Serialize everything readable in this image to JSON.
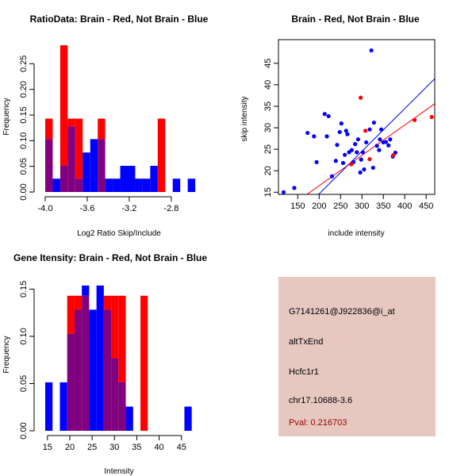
{
  "colors": {
    "brain": "#ff0000",
    "not_brain": "#0000ff",
    "overlap": "#800080",
    "panel_bg": "#e6c8c0",
    "pval_text": "#9a0000"
  },
  "chart_data": [
    {
      "id": "ratio",
      "type": "histogram",
      "title": "RatioData: Brain - Red, Not Brain - Blue",
      "xlabel": "Log2 Ratio Skip/Include",
      "ylabel": "Frequency",
      "xlim": [
        -4.0,
        -2.55
      ],
      "ylim": [
        0,
        0.3
      ],
      "x_ticks": [
        -4.0,
        -3.6,
        -3.2,
        -2.8
      ],
      "x_tick_labels": [
        "-4.0",
        "-3.6",
        "-3.2",
        "-2.8"
      ],
      "y_ticks": [
        0,
        0.05,
        0.1,
        0.15,
        0.2,
        0.25
      ],
      "y_tick_labels": [
        "0.00",
        "0.05",
        "0.10",
        "0.15",
        "0.20",
        "0.25"
      ],
      "bin_start": -4.0,
      "bin_width": 0.0714,
      "series": [
        {
          "name": "Brain",
          "color": "red",
          "values": [
            0.143,
            0,
            0.286,
            0.143,
            0.143,
            0,
            0,
            0.143,
            0,
            0,
            0,
            0,
            0,
            0,
            0,
            0.143,
            0,
            0,
            0,
            0
          ]
        },
        {
          "name": "Not Brain",
          "color": "blue",
          "values": [
            0.103,
            0.026,
            0.051,
            0.128,
            0.026,
            0.077,
            0.103,
            0.103,
            0.026,
            0.026,
            0.051,
            0.051,
            0.026,
            0.026,
            0.051,
            0,
            0,
            0.026,
            0,
            0.026
          ]
        }
      ]
    },
    {
      "id": "scatter",
      "type": "scatter",
      "title": "Brain - Red, Not Brain - Blue",
      "xlabel": "include intensity",
      "ylabel": "skip intensity",
      "xlim": [
        105,
        470
      ],
      "ylim": [
        14.5,
        50.5
      ],
      "x_ticks": [
        150,
        200,
        250,
        300,
        350,
        400,
        450
      ],
      "x_tick_labels": [
        "150",
        "200",
        "250",
        "300",
        "350",
        "400",
        "450"
      ],
      "y_ticks": [
        15,
        20,
        25,
        30,
        35,
        40,
        45
      ],
      "y_tick_labels": [
        "15",
        "20",
        "25",
        "30",
        "35",
        "40",
        "45"
      ],
      "series": [
        {
          "name": "Brain",
          "color": "red",
          "x": [
            275,
            297,
            308,
            318,
            373,
            423,
            463
          ],
          "y": [
            21.5,
            37.0,
            29.3,
            22.7,
            23.6,
            31.8,
            32.5
          ]
        },
        {
          "name": "Not Brain",
          "color": "blue",
          "x": [
            117,
            142,
            173,
            188,
            194,
            213,
            218,
            222,
            230,
            239,
            242,
            248,
            252,
            256,
            260,
            263,
            266,
            270,
            276,
            280,
            284,
            288,
            291,
            296,
            298,
            302,
            305,
            310,
            318,
            322,
            326,
            328,
            335,
            340,
            342,
            345,
            350,
            356,
            362,
            366,
            372,
            378
          ],
          "y": [
            15.0,
            16.0,
            28.8,
            28.0,
            22.0,
            33.2,
            28.0,
            32.7,
            18.7,
            22.3,
            26.0,
            29.0,
            31.0,
            21.8,
            23.7,
            29.3,
            28.5,
            24.3,
            24.8,
            22.0,
            26.2,
            24.3,
            27.3,
            19.6,
            22.6,
            24.3,
            20.3,
            26.6,
            29.6,
            48.0,
            20.7,
            31.2,
            25.8,
            24.8,
            27.3,
            29.6,
            26.6,
            26.7,
            25.9,
            27.3,
            23.3,
            24.2
          ]
        }
      ],
      "fit_lines": [
        {
          "name": "Brain fit",
          "color": "red",
          "x1": 105,
          "y1": 9.8,
          "x2": 470,
          "y2": 35.6
        },
        {
          "name": "Not Brain fit",
          "color": "blue",
          "x1": 105,
          "y1": 5.2,
          "x2": 470,
          "y2": 41.4
        }
      ]
    },
    {
      "id": "intensity",
      "type": "histogram",
      "title": "Gene Itensity: Brain - Red, Not Brain - Blue",
      "xlabel": "Intensity",
      "ylabel": "Frequency",
      "xlim": [
        14.5,
        48.6
      ],
      "ylim": [
        0,
        0.168
      ],
      "x_ticks": [
        15,
        20,
        25,
        30,
        35,
        40,
        45
      ],
      "x_tick_labels": [
        "15",
        "20",
        "25",
        "30",
        "35",
        "40",
        "45"
      ],
      "y_ticks": [
        0,
        0.05,
        0.1,
        0.15
      ],
      "y_tick_labels": [
        "0.00",
        "0.05",
        "0.10",
        "0.15"
      ],
      "bin_start": 14.5,
      "bin_width": 1.64,
      "series": [
        {
          "name": "Brain",
          "color": "red",
          "values": [
            0,
            0,
            0,
            0.143,
            0.143,
            0.143,
            0,
            0,
            0.143,
            0.143,
            0.143,
            0,
            0,
            0.143,
            0,
            0,
            0,
            0,
            0,
            0
          ]
        },
        {
          "name": "Not Brain",
          "color": "blue",
          "values": [
            0.0513,
            0,
            0.0513,
            0.1026,
            0.1282,
            0.1538,
            0.1282,
            0.1538,
            0.1282,
            0.0769,
            0.0513,
            0.0256,
            0,
            0,
            0,
            0,
            0,
            0,
            0,
            0.0256
          ]
        }
      ]
    }
  ],
  "info": {
    "probe": "G7141261@J922836@i_at",
    "event": "altTxEnd",
    "gene": "Hcfc1r1",
    "location": "chr17.10688-3.6",
    "pval": "Pval: 0.216703"
  }
}
